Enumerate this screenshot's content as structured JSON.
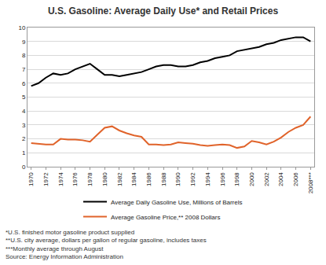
{
  "chart_data": {
    "type": "line",
    "title": "U.S. Gasoline: Average Daily Use* and Retail Prices",
    "x": [
      1970,
      1971,
      1972,
      1973,
      1974,
      1975,
      1976,
      1977,
      1978,
      1979,
      1980,
      1981,
      1982,
      1983,
      1984,
      1985,
      1986,
      1987,
      1988,
      1989,
      1990,
      1991,
      1992,
      1993,
      1994,
      1995,
      1996,
      1997,
      1998,
      1999,
      2000,
      2001,
      2002,
      2003,
      2004,
      2005,
      2006,
      2007,
      2008
    ],
    "series": [
      {
        "name": "Average Daily Gasoline Use, Millions of Barrels",
        "color": "#000000",
        "values": [
          5.8,
          6.0,
          6.4,
          6.7,
          6.6,
          6.7,
          7.0,
          7.2,
          7.4,
          7.0,
          6.6,
          6.6,
          6.5,
          6.6,
          6.7,
          6.8,
          7.0,
          7.2,
          7.3,
          7.3,
          7.2,
          7.2,
          7.3,
          7.5,
          7.6,
          7.8,
          7.9,
          8.0,
          8.3,
          8.4,
          8.5,
          8.6,
          8.8,
          8.9,
          9.1,
          9.2,
          9.3,
          9.3,
          9.0
        ]
      },
      {
        "name": "Average Gasoline Price,** 2008 Dollars",
        "color": "#e0632a",
        "values": [
          1.7,
          1.65,
          1.6,
          1.6,
          2.0,
          1.95,
          1.95,
          1.9,
          1.8,
          2.3,
          2.8,
          2.9,
          2.6,
          2.4,
          2.25,
          2.15,
          1.6,
          1.6,
          1.55,
          1.6,
          1.75,
          1.7,
          1.65,
          1.55,
          1.5,
          1.55,
          1.6,
          1.55,
          1.35,
          1.45,
          1.85,
          1.75,
          1.6,
          1.8,
          2.1,
          2.5,
          2.8,
          3.0,
          3.6
        ]
      }
    ],
    "xlim": [
      1969.5,
      2008.5
    ],
    "xticks": [
      1970,
      1972,
      1974,
      1976,
      1978,
      1980,
      1982,
      1984,
      1986,
      1988,
      1990,
      1992,
      1994,
      1996,
      1998,
      2000,
      2002,
      2004,
      2006,
      {
        "value": 2008,
        "label": "2008***"
      }
    ],
    "ylim": [
      0,
      10
    ],
    "yticks": [
      0,
      1,
      2,
      3,
      4,
      5,
      6,
      7,
      8,
      9,
      10
    ],
    "grid": true,
    "legend": "bottom",
    "annotations": [
      "*U.S. finished motor gasoline product supplied",
      "**U.S. city average, dollars per gallon of regular gasoline, includes taxes",
      "***Monthly average through August",
      "Source: Energy Information Administration"
    ]
  }
}
